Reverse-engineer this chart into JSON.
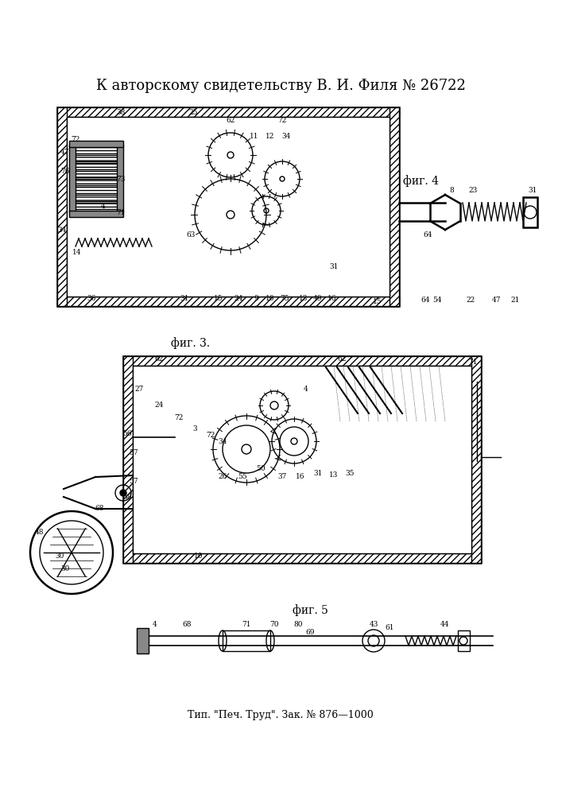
{
  "title": "К авторскому свидетельству В. И. Филя № 26722",
  "footer": "Тип. \"Печ. Труд\". Зак. № 876—1000",
  "fig3_label": "фиг. 3.",
  "fig4_label": "фиг. 4",
  "fig5_label": "фиг. 5",
  "bg_color": "#ffffff",
  "line_color": "#000000",
  "title_fontsize": 13,
  "footer_fontsize": 9,
  "fig_label_fontsize": 11
}
